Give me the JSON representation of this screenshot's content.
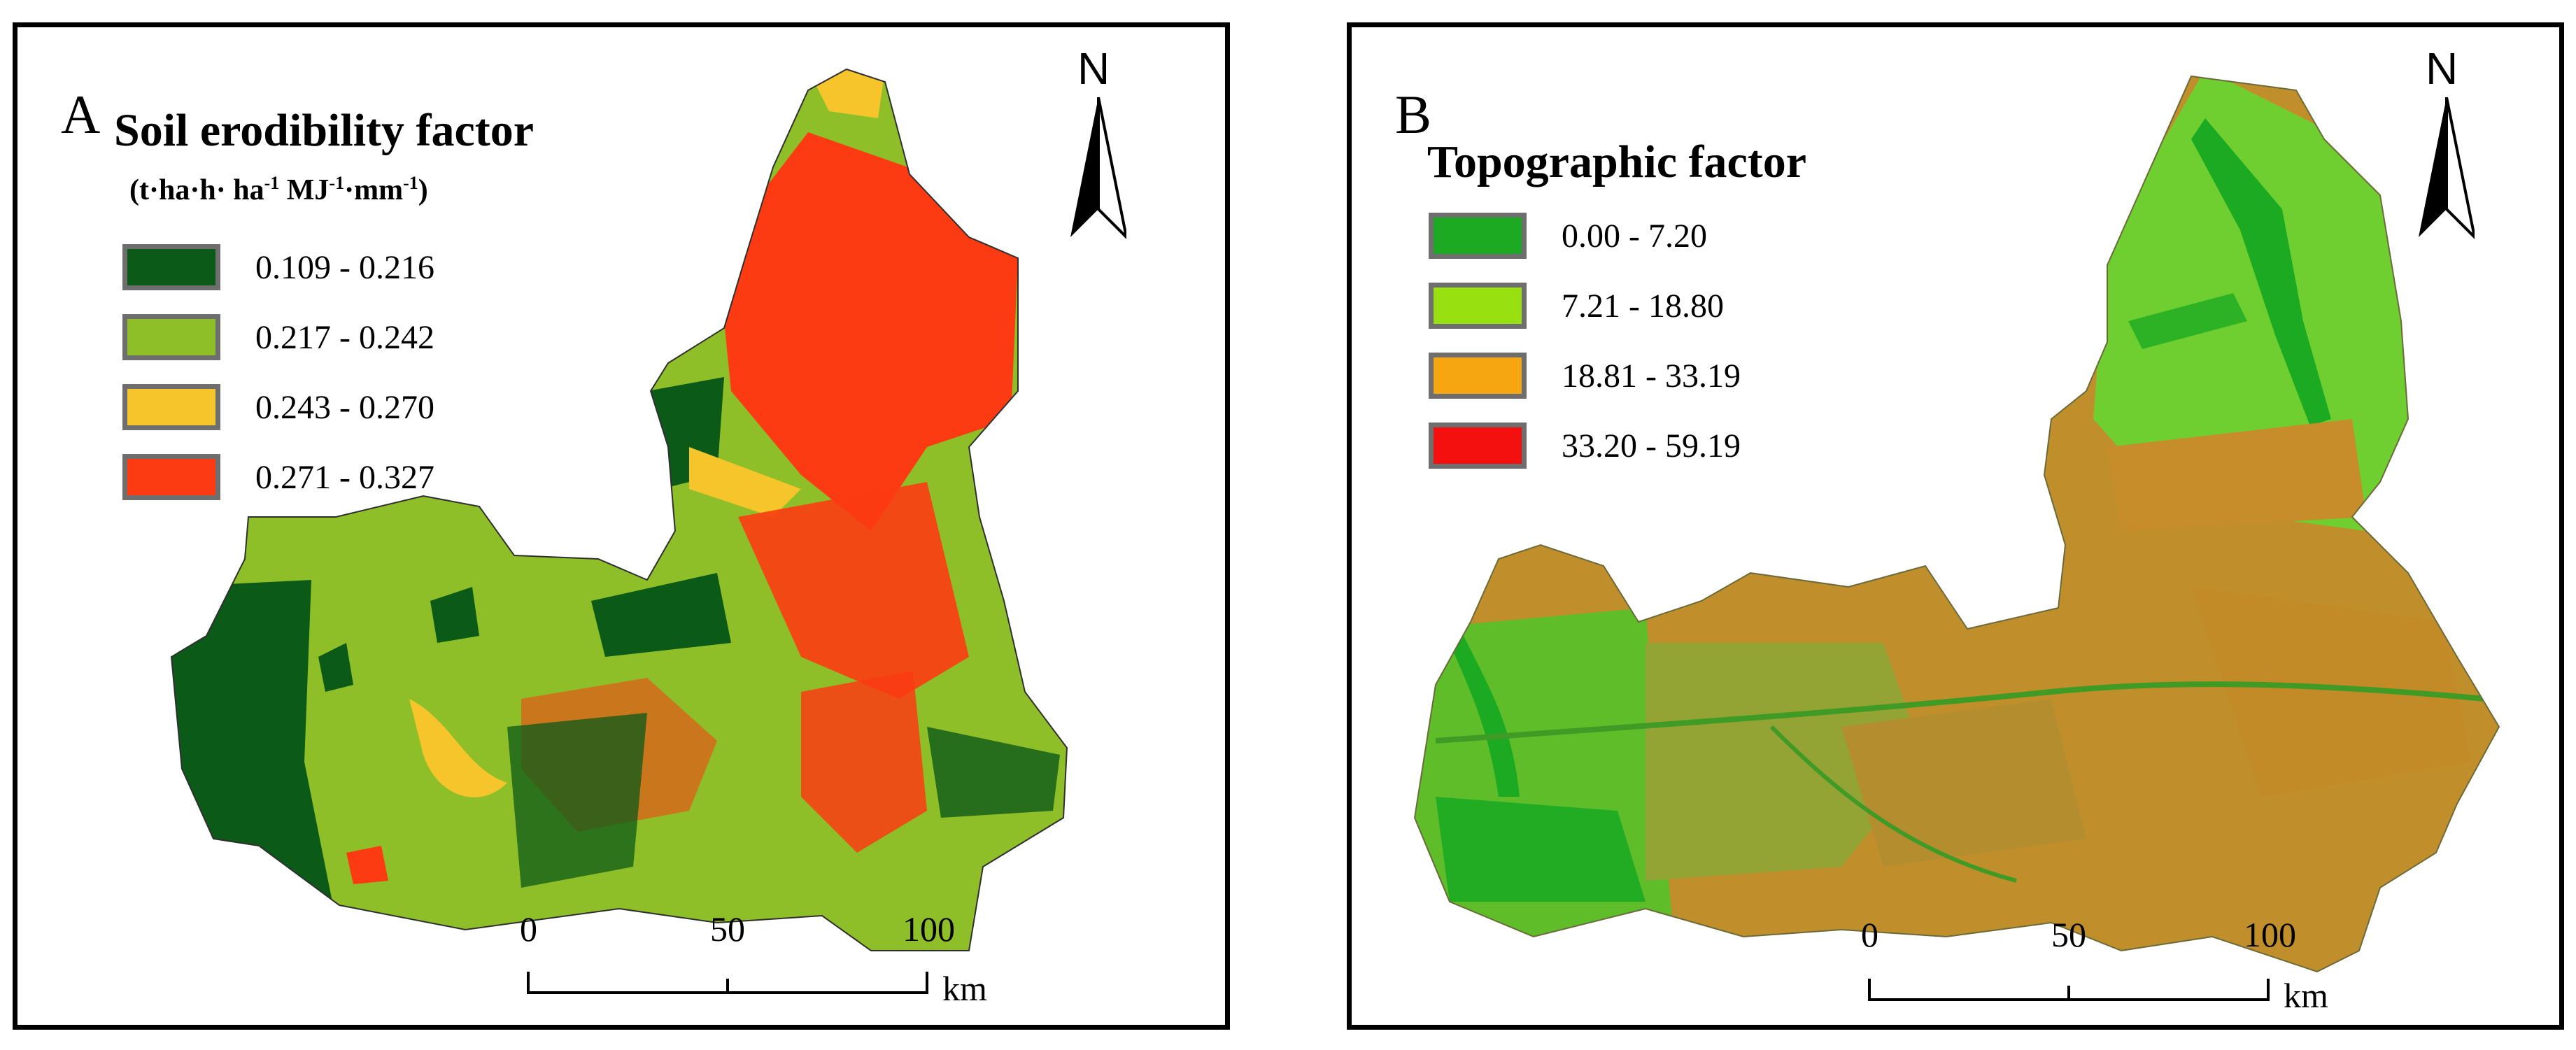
{
  "panel_a": {
    "letter": "A",
    "title": "Soil erodibility factor",
    "unit": {
      "part1": "(t·ha·h· ha",
      "sup1": "-1",
      "part2": " MJ",
      "sup2": "-1",
      "part3": "·mm",
      "sup3": "-1",
      "part4": ")"
    },
    "legend": [
      {
        "label": "0.109 - 0.216",
        "color": "#0b5a18"
      },
      {
        "label": "0.217 - 0.242",
        "color": "#8fbf28"
      },
      {
        "label": "0.243 - 0.270",
        "color": "#f5c52b"
      },
      {
        "label": "0.271 - 0.327",
        "color": "#fc3b12"
      }
    ],
    "north": "N",
    "scale": {
      "ticks": [
        "0",
        "50",
        "100"
      ],
      "unit": "km"
    }
  },
  "panel_b": {
    "letter": "B",
    "title": "Topographic factor",
    "legend": [
      {
        "label": "0.00 - 7.20",
        "color": "#1caa22"
      },
      {
        "label": "7.21 - 18.80",
        "color": "#99e011"
      },
      {
        "label": "18.81 - 33.19",
        "color": "#f5a611"
      },
      {
        "label": "33.20 - 59.19",
        "color": "#f51010"
      }
    ],
    "north": "N",
    "scale": {
      "ticks": [
        "0",
        "50",
        "100"
      ],
      "unit": "km"
    }
  }
}
